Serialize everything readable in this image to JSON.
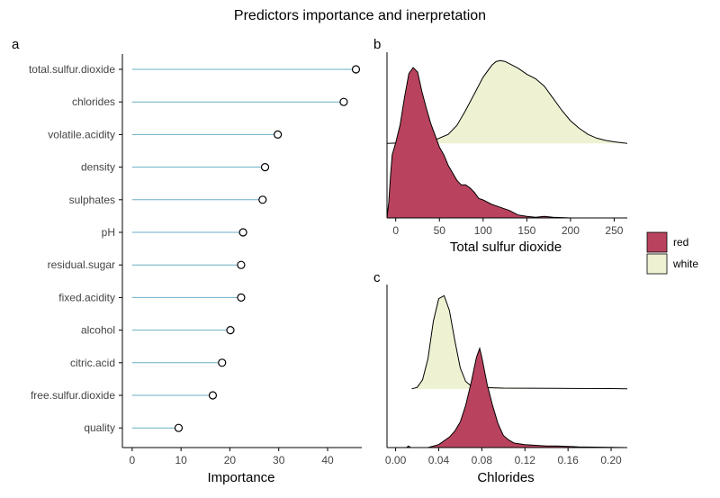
{
  "title": "Predictors importance and inerpretation",
  "colors": {
    "red": "#b9435e",
    "white": "#eef2d2"
  },
  "legend": [
    {
      "name": "red",
      "color": "#b9435e"
    },
    {
      "name": "white",
      "color": "#eef2d2"
    }
  ],
  "chart_data": [
    {
      "panel": "a",
      "type": "lollipop",
      "xlabel": "Importance",
      "xlim": [
        -2,
        47
      ],
      "xticks": [
        0,
        10,
        20,
        30,
        40
      ],
      "categories": [
        "total.sulfur.dioxide",
        "chlorides",
        "volatile.acidity",
        "density",
        "sulphates",
        "pH",
        "residual.sugar",
        "fixed.acidity",
        "alcohol",
        "citric.acid",
        "free.sulfur.dioxide",
        "quality"
      ],
      "values": [
        45.8,
        43.3,
        29.8,
        27.2,
        26.7,
        22.7,
        22.3,
        22.3,
        20.1,
        18.4,
        16.5,
        9.5
      ]
    },
    {
      "panel": "b",
      "type": "area",
      "xlabel": "Total sulfur dioxide",
      "xlim": [
        -10,
        265
      ],
      "xticks": [
        0,
        50,
        100,
        150,
        200,
        250
      ],
      "legend": "right",
      "series": [
        {
          "name": "white",
          "color": "#eef2d2",
          "baseline": 0.45,
          "x": [
            -10,
            0,
            20,
            40,
            60,
            70,
            80,
            90,
            100,
            110,
            115,
            120,
            125,
            130,
            140,
            150,
            160,
            170,
            180,
            190,
            200,
            210,
            220,
            230,
            240,
            250,
            265
          ],
          "y": [
            0.0,
            0.002,
            0.004,
            0.01,
            0.06,
            0.12,
            0.22,
            0.33,
            0.44,
            0.52,
            0.545,
            0.55,
            0.545,
            0.53,
            0.5,
            0.46,
            0.43,
            0.38,
            0.3,
            0.22,
            0.15,
            0.1,
            0.06,
            0.035,
            0.02,
            0.01,
            0.0
          ]
        },
        {
          "name": "red",
          "color": "#b9435e",
          "baseline": 0,
          "x": [
            -10,
            -8,
            -6,
            -4,
            0,
            5,
            10,
            15,
            20,
            25,
            30,
            35,
            40,
            45,
            50,
            55,
            60,
            65,
            70,
            75,
            80,
            85,
            90,
            95,
            100,
            110,
            120,
            130,
            140,
            150,
            160,
            170,
            180,
            200,
            265
          ],
          "y": [
            0.0,
            0.1,
            0.28,
            0.42,
            0.5,
            0.62,
            0.8,
            0.96,
            1.0,
            0.97,
            0.84,
            0.73,
            0.63,
            0.55,
            0.47,
            0.42,
            0.35,
            0.3,
            0.25,
            0.22,
            0.22,
            0.2,
            0.17,
            0.13,
            0.12,
            0.09,
            0.07,
            0.05,
            0.02,
            0.01,
            0.005,
            0.01,
            0.005,
            0.0,
            0.0
          ]
        }
      ]
    },
    {
      "panel": "c",
      "type": "area",
      "xlabel": "Chlorides",
      "xlim": [
        -0.008,
        0.215
      ],
      "xticks": [
        0,
        0.04,
        0.08,
        0.12,
        0.16,
        0.2
      ],
      "tick_labels": [
        "0.00",
        "0.04",
        "0.08",
        "0.12",
        "0.16",
        "0.20"
      ],
      "series": [
        {
          "name": "white",
          "color": "#eef2d2",
          "baseline": 0.36,
          "x": [
            0.015,
            0.02,
            0.025,
            0.03,
            0.035,
            0.04,
            0.045,
            0.05,
            0.055,
            0.06,
            0.065,
            0.07,
            0.08,
            0.1,
            0.15,
            0.2,
            0.215
          ],
          "y": [
            0.0,
            0.01,
            0.06,
            0.2,
            0.45,
            0.6,
            0.62,
            0.52,
            0.32,
            0.14,
            0.05,
            0.02,
            0.01,
            0.005,
            0.003,
            0.002,
            0.0
          ]
        },
        {
          "name": "red",
          "color": "#b9435e",
          "baseline": 0,
          "x": [
            0.01,
            0.012,
            0.014,
            0.03,
            0.04,
            0.05,
            0.055,
            0.06,
            0.065,
            0.07,
            0.075,
            0.078,
            0.08,
            0.085,
            0.09,
            0.095,
            0.1,
            0.105,
            0.11,
            0.12,
            0.13,
            0.14,
            0.15,
            0.16,
            0.17,
            0.2,
            0.215
          ],
          "y": [
            0.0,
            0.01,
            0.0,
            0.0,
            0.02,
            0.07,
            0.11,
            0.17,
            0.28,
            0.43,
            0.6,
            0.66,
            0.6,
            0.42,
            0.28,
            0.16,
            0.08,
            0.05,
            0.03,
            0.02,
            0.015,
            0.01,
            0.01,
            0.008,
            0.005,
            0.002,
            0.0
          ]
        }
      ]
    }
  ]
}
